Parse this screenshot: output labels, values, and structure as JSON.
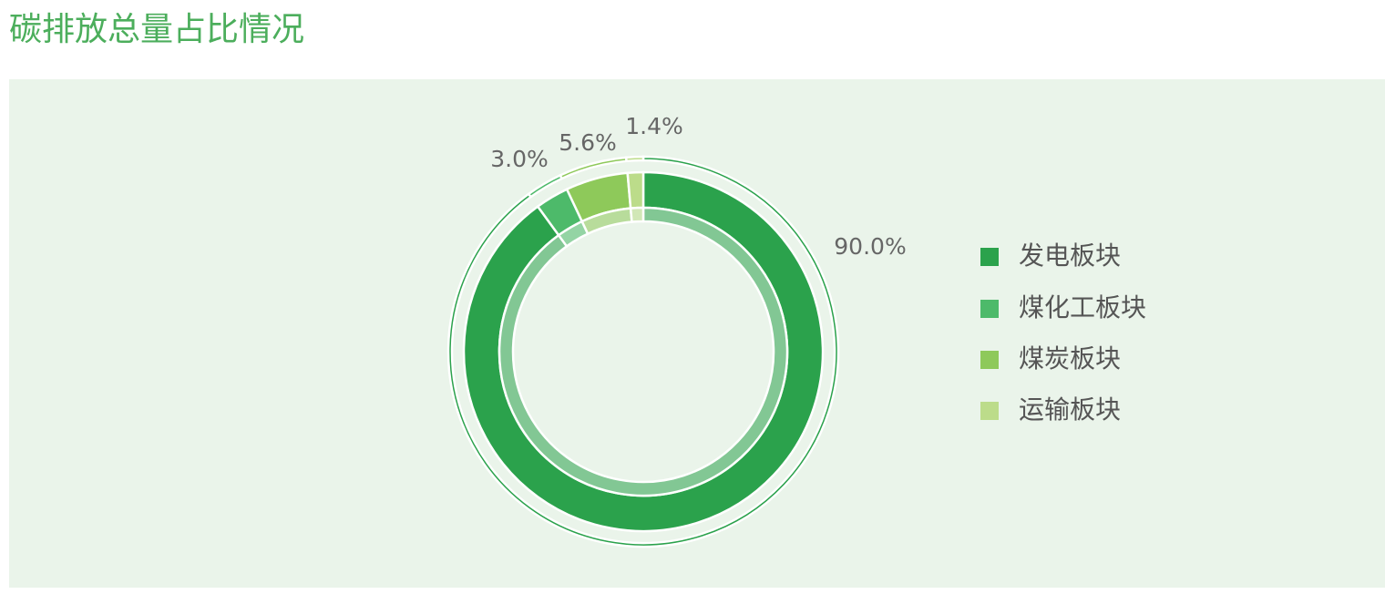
{
  "chart_data": {
    "type": "donut",
    "title": "碳排放总量占比情况",
    "categories": [
      "发电板块",
      "煤化工板块",
      "煤炭板块",
      "运输板块"
    ],
    "values": [
      90.0,
      3.0,
      5.6,
      1.4
    ],
    "value_labels": [
      "90.0%",
      "3.0%",
      "5.6%",
      "1.4%"
    ],
    "colors": [
      "#2ba24c",
      "#4dba6a",
      "#8ec95a",
      "#bcdc8a"
    ],
    "legend": "right"
  }
}
